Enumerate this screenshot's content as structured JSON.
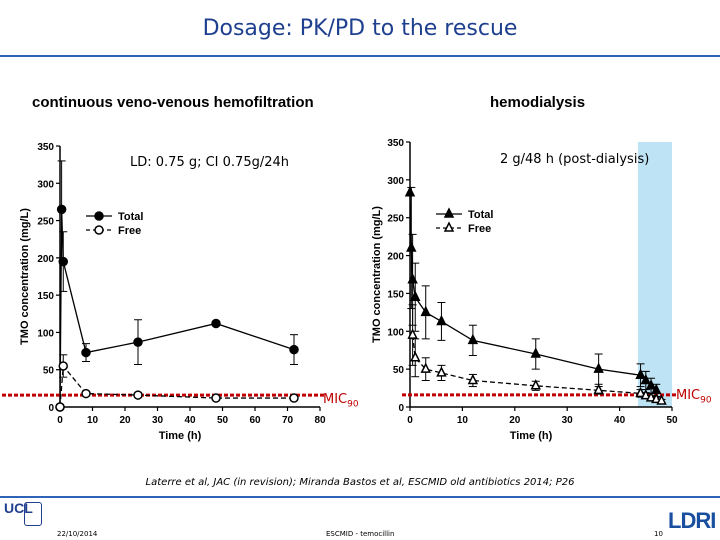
{
  "slide": {
    "title": "Dosage: PK/PD to the rescue",
    "reference": "Laterre et al, JAC (in revision); Miranda Bastos et al, ESCMID old antibiotics 2014; P26",
    "footer_date": "22/10/2014",
    "footer_center": "ESCMID - temocillin",
    "page_number": "10",
    "logo_left_text": "UCL",
    "logo_right_text": "LDRI",
    "colors": {
      "title": "#1f3f8f",
      "rule": "#2f63b8",
      "mic_line": "#c00000",
      "dialysis_band": "#bde3f5"
    }
  },
  "chart_data": [
    {
      "type": "line",
      "panel_title": "continuous veno-venous hemofiltration",
      "annotation": "LD: 0.75 g; CI 0.75g/24h",
      "xlabel": "Time (h)",
      "ylabel": "TMO concentration (mg/L)",
      "xlim": [
        0,
        80
      ],
      "ylim": [
        0,
        350
      ],
      "xticks": [
        "0",
        "10",
        "20",
        "30",
        "40",
        "50",
        "60",
        "70",
        "80"
      ],
      "yticks": [
        "0",
        "50",
        "100",
        "150",
        "200",
        "250",
        "300",
        "350"
      ],
      "legend_position": "top-left",
      "mic_label": "MIC",
      "mic_subscript": "90",
      "mic_value": 16,
      "series": [
        {
          "name": "Total",
          "marker": "filled-circle",
          "style": "solid",
          "x": [
            0,
            0.5,
            1,
            8,
            24,
            48,
            72
          ],
          "y": [
            0,
            265,
            195,
            73,
            87,
            112,
            77
          ],
          "err": [
            0,
            65,
            40,
            12,
            30,
            0,
            20
          ]
        },
        {
          "name": "Free",
          "marker": "open-circle",
          "style": "dashed",
          "x": [
            0,
            1,
            8,
            24,
            48,
            72
          ],
          "y": [
            0,
            55,
            18,
            16,
            12,
            12
          ],
          "err": [
            0,
            15,
            3,
            3,
            2,
            2
          ]
        }
      ]
    },
    {
      "type": "line",
      "panel_title": "hemodialysis",
      "annotation": "2 g/48 h (post-dialysis)",
      "xlabel": "Time (h)",
      "ylabel": "TMO concentration (mg/L)",
      "xlim": [
        0,
        50
      ],
      "ylim": [
        0,
        350
      ],
      "xticks": [
        "0",
        "10",
        "20",
        "30",
        "40",
        "50"
      ],
      "yticks": [
        "0",
        "50",
        "100",
        "150",
        "200",
        "250",
        "300",
        "350"
      ],
      "legend_position": "top-left",
      "dialysis_window": [
        43.5,
        50
      ],
      "mic_label": "MIC",
      "mic_subscript": "90",
      "mic_value": 16,
      "series": [
        {
          "name": "Total",
          "marker": "filled-triangle",
          "style": "solid",
          "x": [
            0,
            0.25,
            0.5,
            1,
            3,
            6,
            12,
            24,
            36,
            44,
            45,
            46,
            47
          ],
          "y": [
            283,
            210,
            168,
            145,
            125,
            113,
            88,
            70,
            50,
            42,
            35,
            28,
            22
          ],
          "err": [
            0,
            80,
            60,
            45,
            35,
            25,
            20,
            20,
            20,
            15,
            12,
            10,
            8
          ]
        },
        {
          "name": "Free",
          "marker": "open-triangle",
          "style": "dashed",
          "x": [
            0.5,
            1,
            3,
            6,
            12,
            24,
            36,
            44,
            45,
            46,
            47,
            48
          ],
          "y": [
            95,
            65,
            50,
            45,
            35,
            28,
            22,
            18,
            15,
            12,
            10,
            8
          ],
          "err": [
            40,
            25,
            15,
            10,
            8,
            6,
            5,
            5,
            4,
            3,
            3,
            2
          ]
        }
      ]
    }
  ]
}
